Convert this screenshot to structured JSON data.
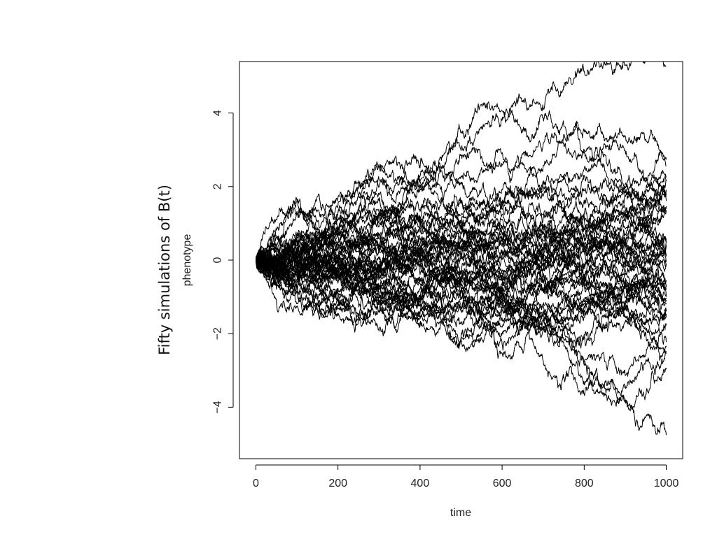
{
  "chart_data": {
    "type": "line",
    "title": "",
    "side_title": "Fifty simulations of B(t)",
    "xlabel": "time",
    "ylabel": "phenotype",
    "xlim": [
      -40,
      1040
    ],
    "ylim": [
      -5.4,
      5.4
    ],
    "x_ticks": [
      0,
      200,
      400,
      600,
      800,
      1000
    ],
    "y_ticks": [
      -4,
      -2,
      0,
      2,
      4
    ],
    "grid": false,
    "legend": "none",
    "line_color": "#000000",
    "series_count": 50,
    "n_steps": 1000,
    "step_sd": 0.056,
    "x_range": [
      0,
      1000
    ],
    "y_start": 0
  }
}
